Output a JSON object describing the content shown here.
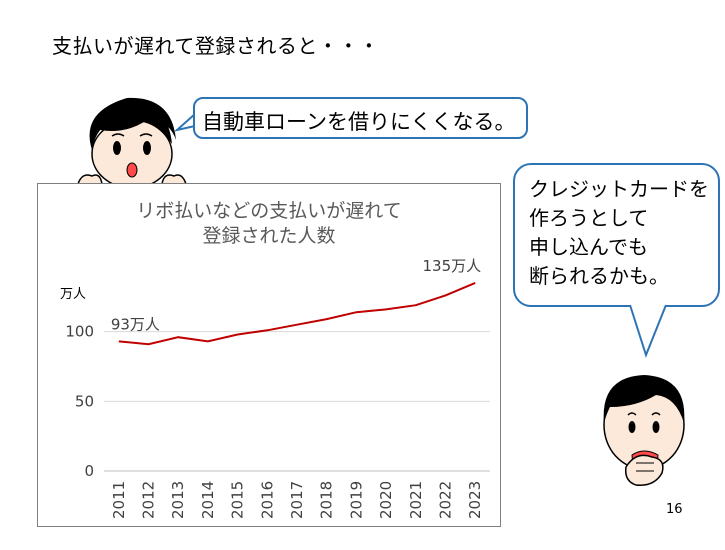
{
  "heading": "支払いが遅れて登録されると・・・",
  "speech_top": "自動車ローンを借りにくくなる。",
  "speech_right": [
    "クレジットカードを",
    "作ろうとして",
    "申し込んでも",
    "断られるかも。"
  ],
  "page_number": "16",
  "colors": {
    "bubble_border": "#2e74b5",
    "line": "#c00000",
    "grid": "#d9d9d9",
    "face_skin": "#fde9d9",
    "hair": "#000000"
  },
  "chart_data": {
    "type": "line",
    "title": [
      "リボ払いなどの支払いが遅れて",
      "登録された人数"
    ],
    "ylabel": "万人",
    "xlabel": "",
    "ylim": [
      0,
      150
    ],
    "yticks": [
      0,
      50,
      100
    ],
    "x": [
      "2011",
      "2012",
      "2013",
      "2014",
      "2015",
      "2016",
      "2017",
      "2018",
      "2019",
      "2020",
      "2021",
      "2022",
      "2023"
    ],
    "series": [
      {
        "values": [
          93,
          91,
          96,
          93,
          98,
          101,
          105,
          109,
          114,
          116,
          119,
          126,
          135
        ]
      }
    ],
    "annotations": [
      {
        "label": "93万人",
        "index": 0
      },
      {
        "label": "135万人",
        "index": 12
      }
    ],
    "grid": true
  }
}
